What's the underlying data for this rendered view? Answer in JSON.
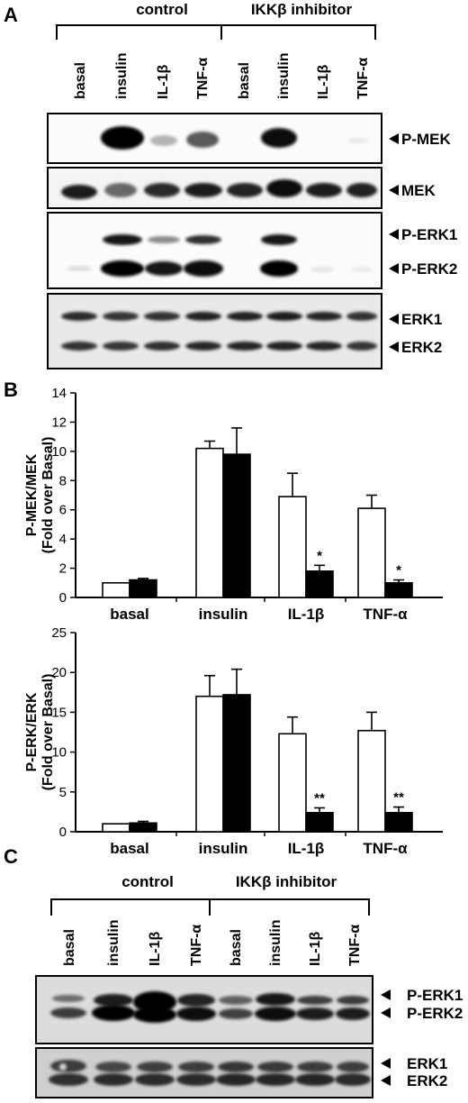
{
  "panels": {
    "A": {
      "letter": "A",
      "groups": [
        "control",
        "IKKβ inhibitor"
      ],
      "lanes": [
        "basal",
        "insulin",
        "IL-1β",
        "TNF-α",
        "basal",
        "insulin",
        "IL-1β",
        "TNF-α"
      ],
      "blots": [
        {
          "labels": [
            "P-MEK"
          ]
        },
        {
          "labels": [
            "MEK"
          ]
        },
        {
          "labels": [
            "P-ERK1",
            "P-ERK2"
          ]
        },
        {
          "labels": [
            "ERK1",
            "ERK2"
          ]
        }
      ]
    },
    "B": {
      "letter": "B"
    },
    "C": {
      "letter": "C",
      "groups": [
        "control",
        "IKKβ inhibitor"
      ],
      "lanes": [
        "basal",
        "insulin",
        "IL-1β",
        "TNF-α",
        "basal",
        "insulin",
        "IL-1β",
        "TNF-α"
      ],
      "blots": [
        {
          "labels": [
            "P-ERK1",
            "P-ERK2"
          ]
        },
        {
          "labels": [
            "ERK1",
            "ERK2"
          ]
        }
      ]
    }
  },
  "chart_data": [
    {
      "type": "bar",
      "categories": [
        "basal",
        "insulin",
        "IL-1β",
        "TNF-α"
      ],
      "ylabel": "P-MEK/MEK\n(Fold over Basal)",
      "ylim": [
        0,
        14
      ],
      "yticks": [
        0,
        2,
        4,
        6,
        8,
        10,
        12,
        14
      ],
      "series": [
        {
          "fill": "#ffffff",
          "values": [
            1.0,
            10.2,
            6.9,
            6.1
          ],
          "errors": [
            0.0,
            0.5,
            1.6,
            0.9
          ]
        },
        {
          "fill": "#000000",
          "values": [
            1.2,
            9.8,
            1.8,
            1.0
          ],
          "errors": [
            0.1,
            1.8,
            0.4,
            0.2
          ]
        }
      ],
      "annotations": [
        "",
        "",
        "*",
        "*"
      ]
    },
    {
      "type": "bar",
      "categories": [
        "basal",
        "insulin",
        "IL-1β",
        "TNF-α"
      ],
      "ylabel": "P-ERK/ERK\n(Fold over Basal)",
      "ylim": [
        0,
        25
      ],
      "yticks": [
        0,
        5,
        10,
        15,
        20,
        25
      ],
      "series": [
        {
          "fill": "#ffffff",
          "values": [
            1.0,
            17.0,
            12.3,
            12.7
          ],
          "errors": [
            0.0,
            2.6,
            2.1,
            2.3
          ]
        },
        {
          "fill": "#000000",
          "values": [
            1.1,
            17.2,
            2.4,
            2.4
          ],
          "errors": [
            0.2,
            3.2,
            0.6,
            0.7
          ]
        }
      ],
      "annotations": [
        "",
        "",
        "**",
        "**"
      ]
    }
  ]
}
